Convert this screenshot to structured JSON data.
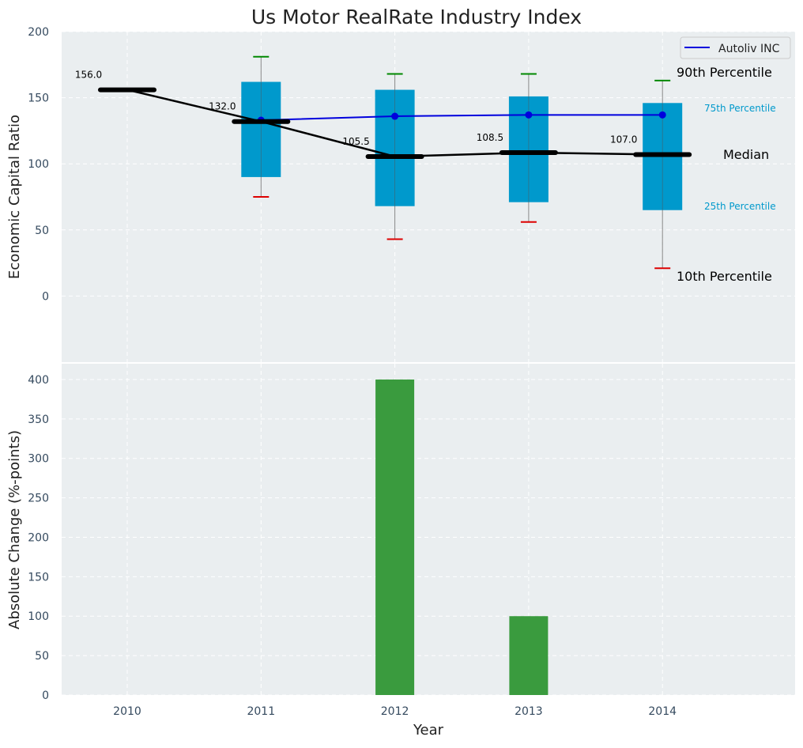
{
  "chart_data": {
    "title": "Us Motor RealRate Industry Index",
    "x_label": "Year",
    "years": [
      "2010",
      "2011",
      "2012",
      "2013",
      "2014"
    ],
    "top_panel": {
      "type": "box",
      "ylabel": "Economic Capital Ratio",
      "ylim": [
        -50,
        200
      ],
      "yticks": [
        0,
        50,
        100,
        150,
        200
      ],
      "boxes": [
        {
          "year": "2011",
          "p10": 75,
          "p25": 90,
          "median": 132,
          "p75": 162,
          "p90": 181
        },
        {
          "year": "2012",
          "p10": 43,
          "p25": 68,
          "median": 105.5,
          "p75": 156,
          "p90": 168
        },
        {
          "year": "2013",
          "p10": 56,
          "p25": 71,
          "median": 108.5,
          "p75": 151,
          "p90": 168
        },
        {
          "year": "2014",
          "p10": 21,
          "p25": 65,
          "median": 107,
          "p75": 146,
          "p90": 163
        }
      ],
      "median_line": {
        "values": [
          156,
          132,
          105.5,
          108.5,
          107
        ],
        "labels": [
          "156.0",
          "132.0",
          "105.5",
          "108.5",
          "107.0"
        ]
      },
      "series": [
        {
          "name": "Autoliv INC",
          "x": [
            "2011",
            "2012",
            "2013",
            "2014"
          ],
          "values": [
            133,
            136,
            137,
            137
          ],
          "color": "#0000dd"
        }
      ],
      "annotations": {
        "p90": "90th Percentile",
        "p75": "75th Percentile",
        "median": "Median",
        "p25": "25th Percentile",
        "p10": "10th Percentile"
      },
      "legend_position": "top-right"
    },
    "bottom_panel": {
      "type": "bar",
      "ylabel": "Absolute Change (%-points)",
      "ylim": [
        0,
        420
      ],
      "yticks": [
        0,
        50,
        100,
        150,
        200,
        250,
        300,
        350,
        400
      ],
      "categories": [
        "2010",
        "2011",
        "2012",
        "2013",
        "2014"
      ],
      "values": [
        0,
        0,
        400,
        100,
        0
      ],
      "color": "#3a9b3e"
    },
    "colors": {
      "panel_bg": "#eaeef0",
      "box": "#0099cc",
      "median": "#000000",
      "whisker_high": "#008800",
      "whisker_low": "#dd0000",
      "grid": "#ffffff"
    }
  }
}
